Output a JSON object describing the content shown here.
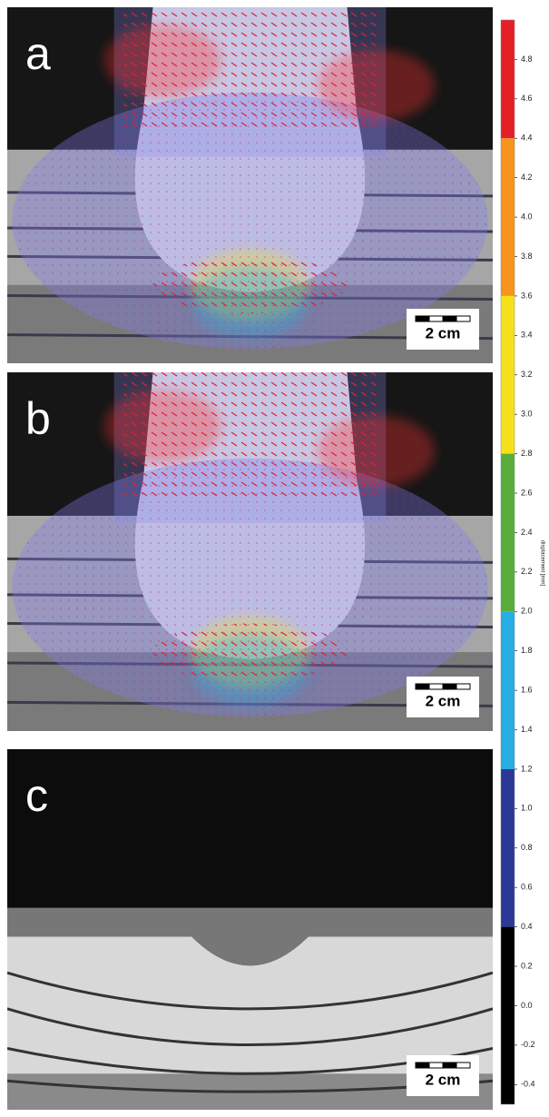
{
  "panels": [
    {
      "label": "a",
      "scale_bar": "2 cm"
    },
    {
      "label": "b",
      "scale_bar": "2 cm"
    },
    {
      "label": "c",
      "scale_bar": "2 cm"
    }
  ],
  "colorbar": {
    "label": "displacement [mm]",
    "lim": [
      -0.5,
      5.0
    ],
    "ticks": [
      4.8,
      4.6,
      4.4,
      4.2,
      {
        "value": 4,
        "label": "4.0"
      },
      3.8,
      3.6,
      3.4,
      3.2,
      {
        "value": 3,
        "label": "3.0"
      },
      2.8,
      2.6,
      2.4,
      2.2,
      {
        "value": 2,
        "label": "2.0"
      },
      1.8,
      1.6,
      1.4,
      1.2,
      {
        "value": 1,
        "label": "1.0"
      },
      0.8,
      0.6,
      0.4,
      0.2,
      {
        "value": 0,
        "label": "0.0"
      },
      -0.2,
      -0.4
    ],
    "segments": [
      {
        "from": 4.4,
        "to": 5.0,
        "color": "#e41f26"
      },
      {
        "from": 3.6,
        "to": 4.4,
        "color": "#f7941d"
      },
      {
        "from": 2.8,
        "to": 3.6,
        "color": "#f5e11a"
      },
      {
        "from": 2.0,
        "to": 2.8,
        "color": "#5aad3c"
      },
      {
        "from": 1.2,
        "to": 2.0,
        "color": "#28aee3"
      },
      {
        "from": 0.4,
        "to": 1.2,
        "color": "#2b3896"
      },
      {
        "from": -0.5,
        "to": 0.4,
        "color": "#000000"
      }
    ]
  }
}
